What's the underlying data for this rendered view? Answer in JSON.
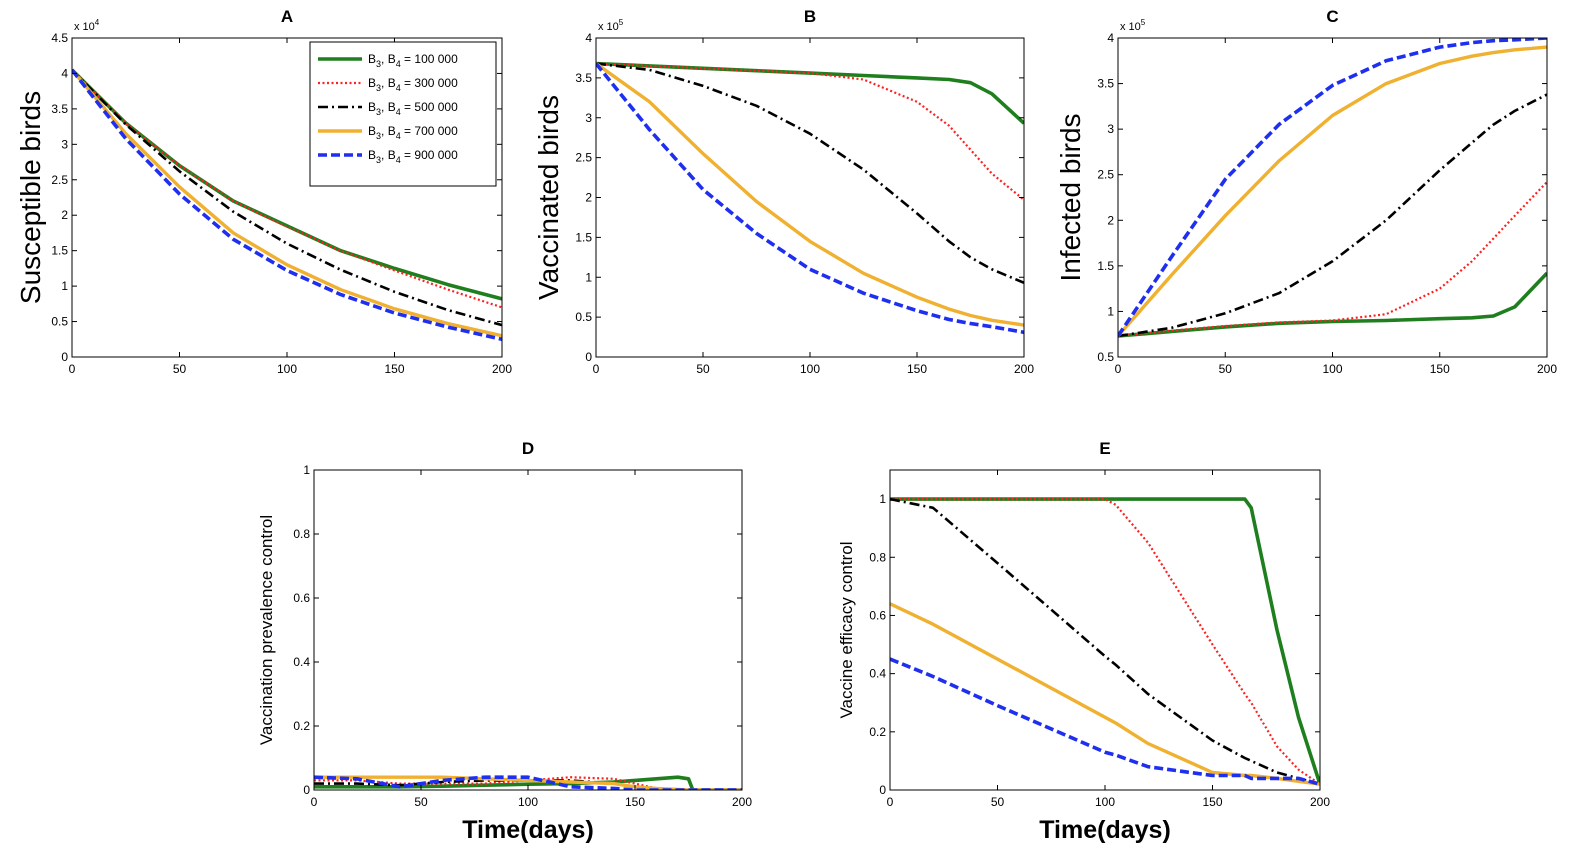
{
  "colors": {
    "s1": "#1f7f1f",
    "s2": "#ff2020",
    "s3": "#000000",
    "s4": "#f0b030",
    "s5": "#1f2ff0"
  },
  "legend": [
    {
      "prefix": "B",
      "sub1": "3",
      "mid": ", B",
      "sub2": "4",
      "value": "= 100 000",
      "key": "s1"
    },
    {
      "prefix": "B",
      "sub1": "3",
      "mid": ", B",
      "sub2": "4",
      "value": "= 300 000",
      "key": "s2"
    },
    {
      "prefix": "B",
      "sub1": "3",
      "mid": ", B",
      "sub2": "4",
      "value": "= 500 000",
      "key": "s3"
    },
    {
      "prefix": "B",
      "sub1": "3",
      "mid": ", B",
      "sub2": "4",
      "value": "= 700 000",
      "key": "s4"
    },
    {
      "prefix": "B",
      "sub1": "3",
      "mid": ", B",
      "sub2": "4",
      "value": "= 900 000",
      "key": "s5"
    }
  ],
  "chart_data": [
    {
      "id": "A",
      "type": "line",
      "title": "A",
      "ylabel": "Susceptible birds",
      "xlabel": "",
      "exponent": {
        "base": "x 10",
        "power": "4"
      },
      "xlim": [
        0,
        200
      ],
      "ylim": [
        0,
        4.5
      ],
      "xticks": [
        0,
        50,
        100,
        150,
        200
      ],
      "yticks": [
        0,
        0.5,
        1,
        1.5,
        2,
        2.5,
        3,
        3.5,
        4,
        4.5
      ],
      "yticklabels": [
        "0",
        "0.5",
        "1",
        "1.5",
        "2",
        "2.5",
        "3",
        "3.5",
        "4",
        "4.5"
      ],
      "x": [
        0,
        25,
        50,
        75,
        100,
        125,
        150,
        175,
        200
      ],
      "series": [
        {
          "key": "s1",
          "values": [
            4.05,
            3.3,
            2.7,
            2.2,
            1.85,
            1.5,
            1.25,
            1.02,
            0.82
          ]
        },
        {
          "key": "s2",
          "values": [
            4.05,
            3.3,
            2.7,
            2.2,
            1.84,
            1.5,
            1.22,
            0.95,
            0.7
          ]
        },
        {
          "key": "s3",
          "values": [
            4.05,
            3.28,
            2.62,
            2.05,
            1.6,
            1.23,
            0.92,
            0.66,
            0.45
          ]
        },
        {
          "key": "s4",
          "values": [
            4.05,
            3.15,
            2.4,
            1.75,
            1.3,
            0.95,
            0.68,
            0.47,
            0.3
          ]
        },
        {
          "key": "s5",
          "values": [
            4.05,
            3.08,
            2.3,
            1.66,
            1.22,
            0.88,
            0.62,
            0.42,
            0.25
          ]
        }
      ]
    },
    {
      "id": "B",
      "type": "line",
      "title": "B",
      "ylabel": "Vaccinated birds",
      "xlabel": "",
      "exponent": {
        "base": "x 10",
        "power": "5"
      },
      "xlim": [
        0,
        200
      ],
      "ylim": [
        0,
        4
      ],
      "xticks": [
        0,
        50,
        100,
        150,
        200
      ],
      "yticks": [
        0,
        0.5,
        1,
        1.5,
        2,
        2.5,
        3,
        3.5,
        4
      ],
      "yticklabels": [
        "0",
        "0.5",
        "1",
        "1.5",
        "2",
        "2.5",
        "3",
        "3.5",
        "4"
      ],
      "x": [
        0,
        25,
        50,
        75,
        100,
        125,
        150,
        165,
        175,
        185,
        200
      ],
      "series": [
        {
          "key": "s1",
          "values": [
            3.68,
            3.65,
            3.62,
            3.59,
            3.56,
            3.53,
            3.5,
            3.48,
            3.44,
            3.3,
            2.93
          ]
        },
        {
          "key": "s2",
          "values": [
            3.68,
            3.65,
            3.62,
            3.59,
            3.56,
            3.48,
            3.2,
            2.9,
            2.6,
            2.3,
            1.97
          ]
        },
        {
          "key": "s3",
          "values": [
            3.68,
            3.6,
            3.4,
            3.15,
            2.8,
            2.35,
            1.8,
            1.45,
            1.25,
            1.1,
            0.93
          ]
        },
        {
          "key": "s4",
          "values": [
            3.68,
            3.2,
            2.55,
            1.95,
            1.45,
            1.05,
            0.75,
            0.6,
            0.52,
            0.46,
            0.4
          ]
        },
        {
          "key": "s5",
          "values": [
            3.68,
            2.85,
            2.1,
            1.55,
            1.1,
            0.8,
            0.58,
            0.47,
            0.42,
            0.38,
            0.31
          ]
        }
      ]
    },
    {
      "id": "C",
      "type": "line",
      "title": "C",
      "ylabel": "Infected birds",
      "xlabel": "",
      "exponent": {
        "base": "x 10",
        "power": "5"
      },
      "xlim": [
        0,
        200
      ],
      "ylim": [
        0.5,
        4
      ],
      "xticks": [
        0,
        50,
        100,
        150,
        200
      ],
      "yticks": [
        0.5,
        1,
        1.5,
        2,
        2.5,
        3,
        3.5,
        4
      ],
      "yticklabels": [
        "0.5",
        "1",
        "1.5",
        "2",
        "2.5",
        "3",
        "3.5",
        "4"
      ],
      "x": [
        0,
        25,
        50,
        75,
        100,
        125,
        150,
        165,
        175,
        185,
        200
      ],
      "series": [
        {
          "key": "s1",
          "values": [
            0.73,
            0.78,
            0.83,
            0.87,
            0.89,
            0.9,
            0.92,
            0.93,
            0.95,
            1.05,
            1.42
          ]
        },
        {
          "key": "s2",
          "values": [
            0.73,
            0.79,
            0.84,
            0.88,
            0.9,
            0.97,
            1.25,
            1.55,
            1.8,
            2.05,
            2.42
          ]
        },
        {
          "key": "s3",
          "values": [
            0.73,
            0.82,
            0.98,
            1.2,
            1.55,
            2.0,
            2.55,
            2.85,
            3.05,
            3.2,
            3.38
          ]
        },
        {
          "key": "s4",
          "values": [
            0.73,
            1.4,
            2.05,
            2.65,
            3.15,
            3.5,
            3.72,
            3.8,
            3.84,
            3.87,
            3.9
          ]
        },
        {
          "key": "s5",
          "values": [
            0.73,
            1.6,
            2.45,
            3.05,
            3.48,
            3.75,
            3.9,
            3.95,
            3.97,
            3.98,
            4.0
          ]
        }
      ]
    },
    {
      "id": "D",
      "type": "line",
      "title": "D",
      "ylabel": "Vaccination prevalence control",
      "xlabel": "Time(days)",
      "exponent": null,
      "xlim": [
        0,
        200
      ],
      "ylim": [
        0,
        1
      ],
      "xticks": [
        0,
        50,
        100,
        150,
        200
      ],
      "yticks": [
        0,
        0.2,
        0.4,
        0.6,
        0.8,
        1
      ],
      "yticklabels": [
        "0",
        "0.2",
        "0.4",
        "0.6",
        "0.8",
        "1"
      ],
      "x": [
        0,
        20,
        40,
        60,
        80,
        100,
        120,
        140,
        150,
        160,
        170,
        175,
        177,
        200
      ],
      "series": [
        {
          "key": "s1",
          "values": [
            0.01,
            0.01,
            0.01,
            0.012,
            0.015,
            0.018,
            0.02,
            0.025,
            0.03,
            0.035,
            0.04,
            0.035,
            0.0,
            0.0
          ]
        },
        {
          "key": "s2",
          "values": [
            0.03,
            0.03,
            0.02,
            0.02,
            0.02,
            0.03,
            0.04,
            0.035,
            0.02,
            0.005,
            0.0,
            0.0,
            0.0,
            0.0
          ]
        },
        {
          "key": "s3",
          "values": [
            0.02,
            0.02,
            0.015,
            0.025,
            0.03,
            0.03,
            0.03,
            0.02,
            0.01,
            0.005,
            0.0,
            0.0,
            0.0,
            0.0
          ]
        },
        {
          "key": "s4",
          "values": [
            0.04,
            0.04,
            0.04,
            0.04,
            0.035,
            0.03,
            0.025,
            0.02,
            0.01,
            0.005,
            0.002,
            0.0,
            0.0,
            0.0
          ]
        },
        {
          "key": "s5",
          "values": [
            0.04,
            0.035,
            0.01,
            0.03,
            0.04,
            0.04,
            0.01,
            0.005,
            0.0,
            0.0,
            0.0,
            0.0,
            0.0,
            0.0
          ]
        }
      ]
    },
    {
      "id": "E",
      "type": "line",
      "title": "E",
      "ylabel": "Vaccine efficacy control",
      "xlabel": "Time(days)",
      "exponent": null,
      "xlim": [
        0,
        200
      ],
      "ylim": [
        0,
        1.1
      ],
      "xticks": [
        0,
        50,
        100,
        150,
        200
      ],
      "yticks": [
        0,
        0.2,
        0.4,
        0.6,
        0.8,
        1
      ],
      "yticklabels": [
        "0",
        "0.2",
        "0.4",
        "0.6",
        "0.8",
        "1"
      ],
      "x": [
        0,
        20,
        50,
        100,
        105,
        120,
        150,
        165,
        168,
        180,
        190,
        200
      ],
      "series": [
        {
          "key": "s1",
          "values": [
            1,
            1,
            1,
            1,
            1,
            1,
            1,
            1,
            0.97,
            0.55,
            0.25,
            0.02
          ]
        },
        {
          "key": "s2",
          "values": [
            1,
            1,
            1,
            1,
            0.98,
            0.85,
            0.5,
            0.33,
            0.3,
            0.15,
            0.07,
            0.02
          ]
        },
        {
          "key": "s3",
          "values": [
            1,
            0.97,
            0.78,
            0.46,
            0.43,
            0.33,
            0.17,
            0.11,
            0.1,
            0.06,
            0.04,
            0.02
          ]
        },
        {
          "key": "s4",
          "values": [
            0.64,
            0.57,
            0.45,
            0.25,
            0.23,
            0.16,
            0.06,
            0.05,
            0.05,
            0.04,
            0.03,
            0.02
          ]
        },
        {
          "key": "s5",
          "values": [
            0.45,
            0.39,
            0.29,
            0.13,
            0.12,
            0.08,
            0.05,
            0.05,
            0.04,
            0.04,
            0.04,
            0.02
          ]
        }
      ]
    }
  ]
}
